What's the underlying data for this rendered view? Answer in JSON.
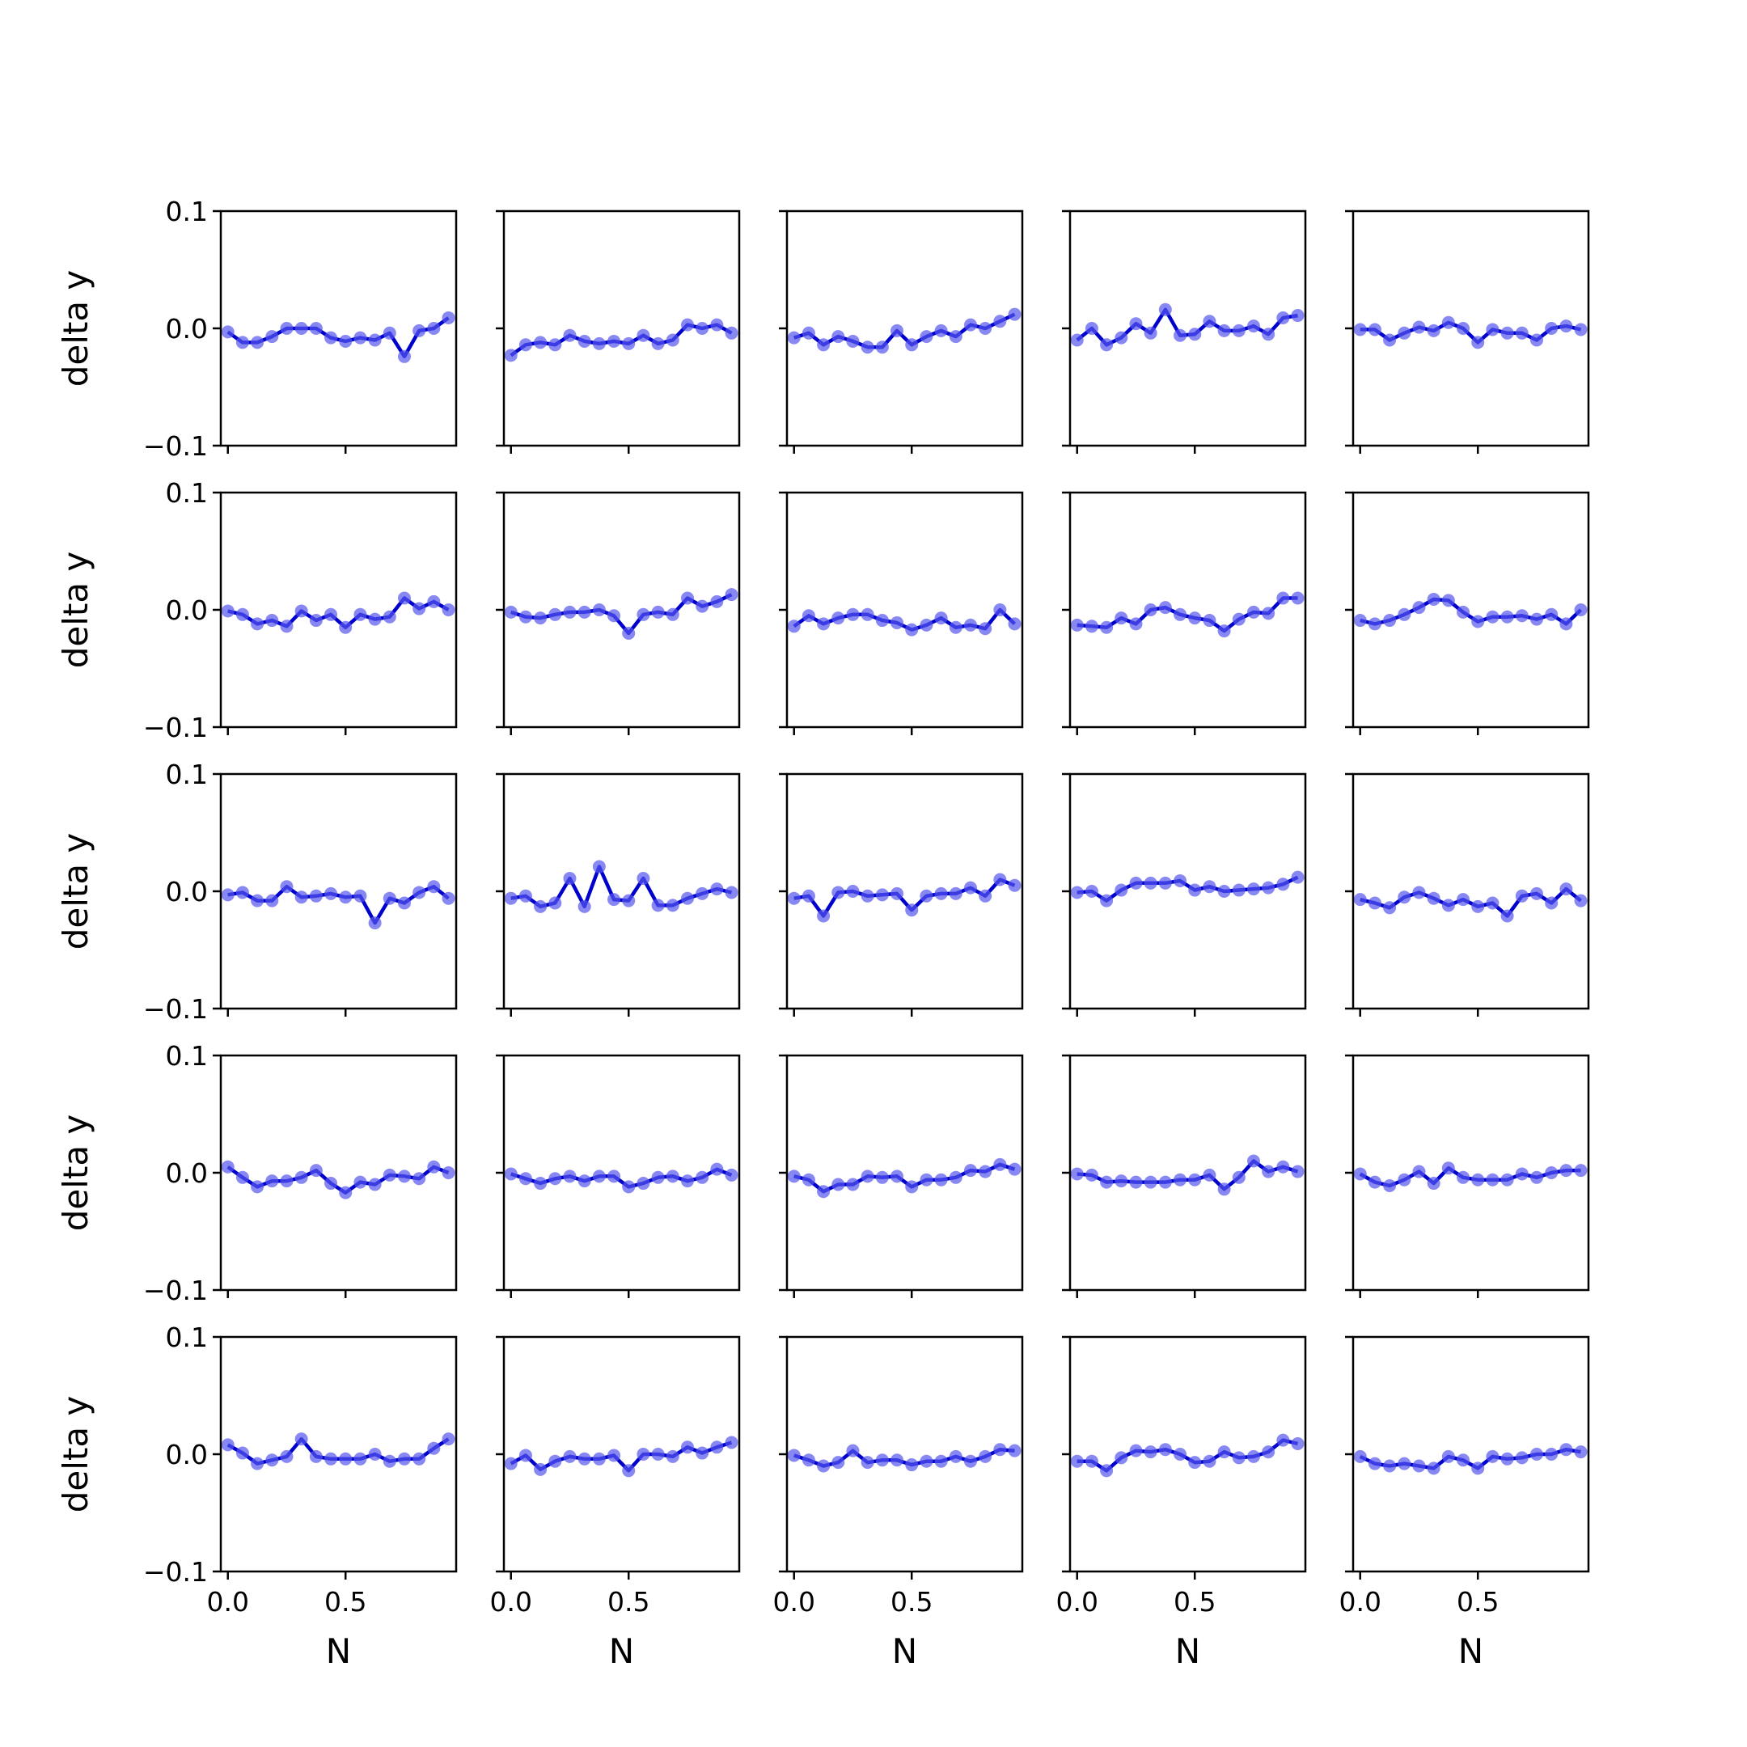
{
  "chart_data": {
    "type": "line",
    "grid_rows": 5,
    "grid_cols": 5,
    "xlabel": "N",
    "ylabel": "delta y",
    "xlim": [
      -0.03,
      0.97
    ],
    "ylim": [
      -0.1,
      0.1
    ],
    "x_ticks": [
      0.0,
      0.5
    ],
    "x_tick_labels": [
      "0.0",
      "0.5"
    ],
    "y_ticks": [
      0.1,
      0.0,
      -0.1
    ],
    "y_tick_labels": [
      "0.1",
      "0.0",
      "−0.1"
    ],
    "grid": false,
    "line_color": "#0000cc",
    "marker_color": "#5555ee",
    "x": [
      0.0,
      0.0625,
      0.125,
      0.1875,
      0.25,
      0.3125,
      0.375,
      0.4375,
      0.5,
      0.5625,
      0.625,
      0.6875,
      0.75,
      0.8125,
      0.875,
      0.9375
    ],
    "panels": [
      {
        "values": [
          -0.003,
          -0.012,
          -0.012,
          -0.007,
          0.0,
          0.0,
          0.0,
          -0.008,
          -0.011,
          -0.008,
          -0.01,
          -0.004,
          -0.024,
          -0.002,
          0.0,
          0.009
        ]
      },
      {
        "values": [
          -0.023,
          -0.014,
          -0.012,
          -0.014,
          -0.006,
          -0.011,
          -0.013,
          -0.011,
          -0.013,
          -0.006,
          -0.013,
          -0.01,
          0.003,
          0.0,
          0.003,
          -0.004
        ]
      },
      {
        "values": [
          -0.008,
          -0.004,
          -0.014,
          -0.007,
          -0.011,
          -0.016,
          -0.016,
          -0.002,
          -0.014,
          -0.007,
          -0.002,
          -0.007,
          0.003,
          0.0,
          0.006,
          0.012
        ]
      },
      {
        "values": [
          -0.01,
          0.0,
          -0.014,
          -0.008,
          0.004,
          -0.004,
          0.016,
          -0.006,
          -0.005,
          0.006,
          -0.002,
          -0.002,
          0.002,
          -0.005,
          0.009,
          0.011
        ]
      },
      {
        "values": [
          -0.001,
          -0.001,
          -0.01,
          -0.004,
          0.001,
          -0.002,
          0.005,
          0.0,
          -0.012,
          -0.001,
          -0.004,
          -0.004,
          -0.01,
          0.0,
          0.002,
          -0.001
        ]
      },
      {
        "values": [
          -0.001,
          -0.004,
          -0.012,
          -0.009,
          -0.014,
          -0.001,
          -0.009,
          -0.004,
          -0.015,
          -0.004,
          -0.008,
          -0.006,
          0.01,
          0.001,
          0.007,
          0.0
        ]
      },
      {
        "values": [
          -0.002,
          -0.006,
          -0.007,
          -0.004,
          -0.002,
          -0.002,
          0.0,
          -0.005,
          -0.02,
          -0.004,
          -0.002,
          -0.004,
          0.01,
          0.003,
          0.007,
          0.013
        ]
      },
      {
        "values": [
          -0.014,
          -0.005,
          -0.012,
          -0.007,
          -0.004,
          -0.004,
          -0.009,
          -0.011,
          -0.017,
          -0.013,
          -0.007,
          -0.015,
          -0.013,
          -0.016,
          0.0,
          -0.012
        ]
      },
      {
        "values": [
          -0.013,
          -0.014,
          -0.015,
          -0.007,
          -0.012,
          0.0,
          0.002,
          -0.004,
          -0.007,
          -0.009,
          -0.018,
          -0.008,
          -0.002,
          -0.003,
          0.01,
          0.01
        ]
      },
      {
        "values": [
          -0.009,
          -0.012,
          -0.009,
          -0.004,
          0.002,
          0.009,
          0.008,
          -0.002,
          -0.01,
          -0.006,
          -0.006,
          -0.005,
          -0.008,
          -0.004,
          -0.012,
          0.0
        ]
      },
      {
        "values": [
          -0.003,
          -0.001,
          -0.008,
          -0.008,
          0.004,
          -0.005,
          -0.004,
          -0.002,
          -0.005,
          -0.004,
          -0.027,
          -0.006,
          -0.01,
          -0.001,
          0.004,
          -0.006
        ]
      },
      {
        "values": [
          -0.006,
          -0.004,
          -0.013,
          -0.01,
          0.011,
          -0.013,
          0.021,
          -0.007,
          -0.008,
          0.011,
          -0.012,
          -0.012,
          -0.006,
          -0.002,
          0.002,
          -0.001
        ]
      },
      {
        "values": [
          -0.006,
          -0.004,
          -0.021,
          -0.001,
          0.0,
          -0.004,
          -0.003,
          -0.002,
          -0.016,
          -0.004,
          -0.002,
          -0.002,
          0.003,
          -0.004,
          0.01,
          0.005
        ]
      },
      {
        "values": [
          -0.001,
          0.0,
          -0.008,
          0.001,
          0.007,
          0.007,
          0.007,
          0.009,
          0.001,
          0.004,
          0.0,
          0.001,
          0.002,
          0.003,
          0.006,
          0.012
        ]
      },
      {
        "values": [
          -0.007,
          -0.01,
          -0.014,
          -0.005,
          -0.001,
          -0.006,
          -0.012,
          -0.007,
          -0.013,
          -0.01,
          -0.021,
          -0.004,
          -0.002,
          -0.01,
          0.002,
          -0.008
        ]
      },
      {
        "values": [
          0.005,
          -0.004,
          -0.012,
          -0.007,
          -0.007,
          -0.004,
          0.002,
          -0.009,
          -0.017,
          -0.008,
          -0.01,
          -0.002,
          -0.003,
          -0.005,
          0.005,
          0.0
        ]
      },
      {
        "values": [
          -0.001,
          -0.005,
          -0.009,
          -0.005,
          -0.003,
          -0.007,
          -0.003,
          -0.003,
          -0.012,
          -0.009,
          -0.004,
          -0.003,
          -0.007,
          -0.004,
          0.003,
          -0.002
        ]
      },
      {
        "values": [
          -0.003,
          -0.006,
          -0.016,
          -0.01,
          -0.01,
          -0.003,
          -0.004,
          -0.003,
          -0.012,
          -0.006,
          -0.006,
          -0.004,
          0.002,
          0.001,
          0.007,
          0.003
        ]
      },
      {
        "values": [
          -0.001,
          -0.002,
          -0.008,
          -0.007,
          -0.008,
          -0.008,
          -0.008,
          -0.006,
          -0.006,
          -0.002,
          -0.014,
          -0.004,
          0.01,
          0.001,
          0.005,
          0.001
        ]
      },
      {
        "values": [
          -0.001,
          -0.008,
          -0.011,
          -0.006,
          0.001,
          -0.009,
          0.004,
          -0.004,
          -0.006,
          -0.006,
          -0.006,
          -0.001,
          -0.004,
          0.0,
          0.002,
          0.002
        ]
      },
      {
        "values": [
          0.008,
          0.001,
          -0.008,
          -0.005,
          -0.002,
          0.013,
          -0.002,
          -0.004,
          -0.004,
          -0.004,
          0.0,
          -0.006,
          -0.004,
          -0.004,
          0.005,
          0.013
        ]
      },
      {
        "values": [
          -0.008,
          -0.001,
          -0.013,
          -0.006,
          -0.002,
          -0.004,
          -0.004,
          -0.001,
          -0.014,
          0.0,
          0.0,
          -0.002,
          0.006,
          0.001,
          0.006,
          0.01
        ]
      },
      {
        "values": [
          -0.001,
          -0.005,
          -0.01,
          -0.007,
          0.003,
          -0.007,
          -0.005,
          -0.005,
          -0.009,
          -0.006,
          -0.006,
          -0.002,
          -0.006,
          -0.002,
          0.004,
          0.003
        ]
      },
      {
        "values": [
          -0.006,
          -0.006,
          -0.014,
          -0.003,
          0.003,
          0.002,
          0.004,
          0.0,
          -0.007,
          -0.006,
          0.002,
          -0.003,
          -0.002,
          0.002,
          0.012,
          0.009
        ]
      },
      {
        "values": [
          -0.002,
          -0.008,
          -0.01,
          -0.008,
          -0.01,
          -0.012,
          -0.002,
          -0.005,
          -0.012,
          -0.002,
          -0.004,
          -0.003,
          0.0,
          0.0,
          0.004,
          0.002
        ]
      }
    ]
  }
}
